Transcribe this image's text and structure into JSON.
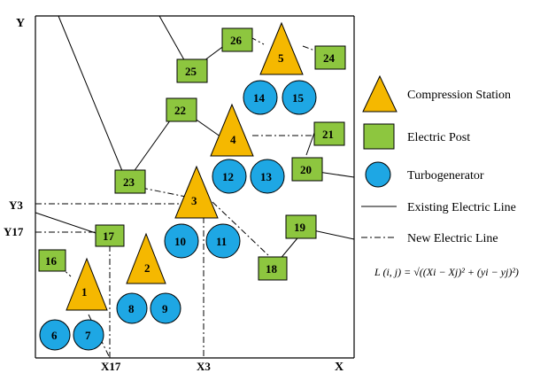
{
  "axes": {
    "x_label": "X",
    "y_label": "Y"
  },
  "ticks": {
    "y3": "Y3",
    "y17": "Y17",
    "x17": "X17",
    "x3": "X3"
  },
  "legend": {
    "compression_station": "Compression Station",
    "electric_post": "Electric Post",
    "turbogenerator": "Turbogenerator",
    "existing_line": "Existing Electric Line",
    "new_line": "New Electric Line"
  },
  "formula": "L (i, j) = √((Xi − Xj)² + (yi − yj)²)",
  "stations": [
    "1",
    "2",
    "3",
    "4",
    "5"
  ],
  "posts": [
    "16",
    "17",
    "18",
    "19",
    "20",
    "21",
    "22",
    "23",
    "24",
    "25",
    "26"
  ],
  "turbines": [
    "6",
    "7",
    "8",
    "9",
    "10",
    "11",
    "12",
    "13",
    "14",
    "15"
  ],
  "colors": {
    "station": "#f5b800",
    "post": "#8dc63f",
    "turbine": "#1ea7e4"
  }
}
